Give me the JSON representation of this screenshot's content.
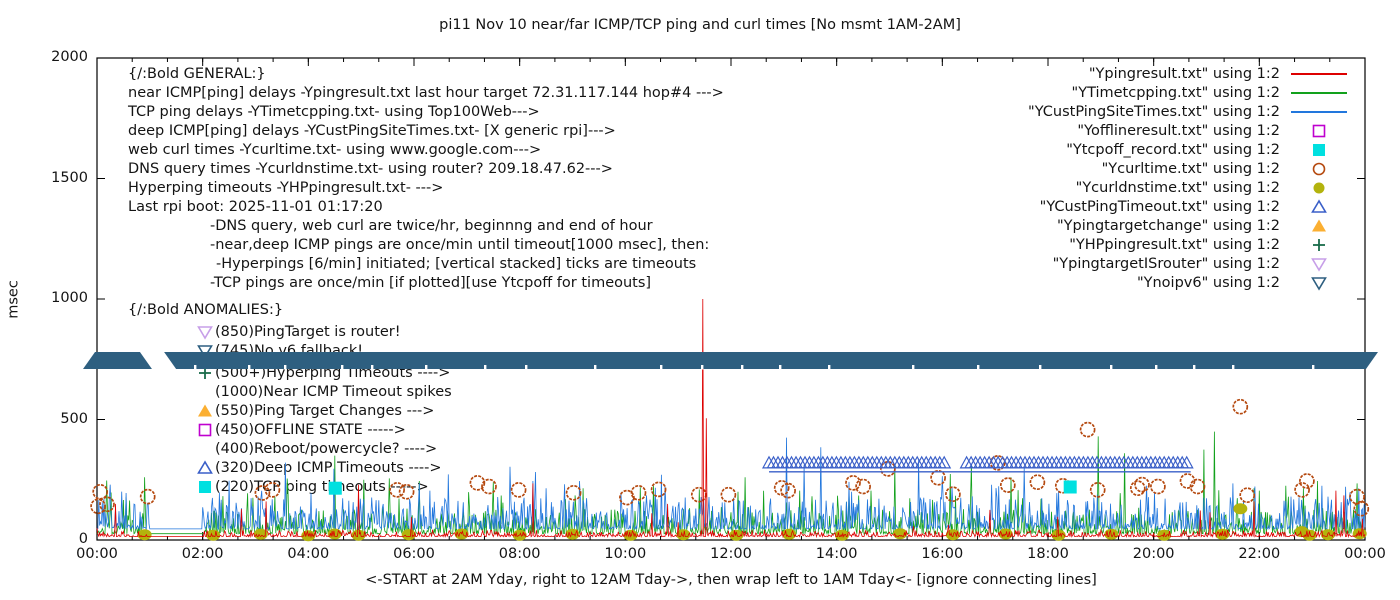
{
  "chart_data": {
    "type": "line",
    "title": "pi11 Nov 10  near/far ICMP/TCP ping and curl times [No msmt 1AM-2AM]",
    "xlabel": "<-START at 2AM Yday, right to 12AM Tday->, then wrap left to 1AM Tday<- [ignore connecting lines]",
    "ylabel": "msec",
    "ylim": [
      0,
      2000
    ],
    "xlim_hours": [
      0,
      24
    ],
    "yticks": [
      0,
      500,
      1000,
      1500,
      2000
    ],
    "xticks": [
      "00:00",
      "02:00",
      "04:00",
      "06:00",
      "08:00",
      "10:00",
      "12:00",
      "14:00",
      "16:00",
      "18:00",
      "20:00",
      "22:00",
      "00:00"
    ],
    "no_measurement_gap_hours": [
      1,
      2
    ],
    "series": [
      {
        "name": "Ypingresult.txt",
        "style": "noisy-line",
        "color": "#dd0000",
        "base": 14,
        "amp": 16,
        "spike_prob": 0.012,
        "spike_max": 110,
        "seed": 11,
        "spikes": [
          [
            0.35,
            150
          ],
          [
            3.2,
            160
          ],
          [
            4.95,
            230
          ],
          [
            8.25,
            235
          ],
          [
            10.8,
            150
          ],
          [
            11.47,
            1000
          ],
          [
            11.53,
            505
          ],
          [
            16.9,
            125
          ],
          [
            21.9,
            160
          ],
          [
            23.45,
            205
          ],
          [
            23.6,
            185
          ]
        ]
      },
      {
        "name": "YTimetcpping.txt",
        "style": "noisy-line",
        "color": "#12a11c",
        "base": 26,
        "amp": 60,
        "spike_prob": 0.055,
        "spike_max": 170,
        "seed": 7,
        "spikes": [
          [
            0.9,
            260
          ],
          [
            2.95,
            175
          ],
          [
            3.6,
            255
          ],
          [
            4.5,
            350
          ],
          [
            5.05,
            250
          ],
          [
            6.1,
            245
          ],
          [
            7.5,
            240
          ],
          [
            9.05,
            185
          ],
          [
            11.4,
            210
          ],
          [
            13.3,
            205
          ],
          [
            14.65,
            205
          ],
          [
            15.1,
            310
          ],
          [
            16.55,
            315
          ],
          [
            17.3,
            260
          ],
          [
            18.95,
            430
          ],
          [
            19.45,
            360
          ],
          [
            20.95,
            375
          ],
          [
            21.15,
            450
          ],
          [
            22.0,
            205
          ],
          [
            23.1,
            245
          ],
          [
            23.85,
            235
          ]
        ]
      },
      {
        "name": "YCustPingSiteTimes.txt",
        "style": "noisy-line",
        "color": "#2277dd",
        "base": 46,
        "amp": 78,
        "spike_prob": 0.045,
        "spike_max": 180,
        "seed": 3,
        "spikes": [
          [
            0.25,
            230
          ],
          [
            0.55,
            195
          ],
          [
            3.05,
            180
          ],
          [
            6.3,
            205
          ],
          [
            8.5,
            215
          ],
          [
            10.4,
            185
          ],
          [
            12.05,
            175
          ],
          [
            13.05,
            425
          ],
          [
            13.7,
            385
          ],
          [
            15.55,
            335
          ],
          [
            16.0,
            265
          ],
          [
            17.55,
            300
          ],
          [
            18.2,
            205
          ],
          [
            21.5,
            235
          ],
          [
            22.6,
            180
          ],
          [
            23.3,
            180
          ]
        ]
      },
      {
        "name": "Ycurltime.txt",
        "style": "circle-open",
        "color": "#b5490f",
        "points": [
          [
            0.02,
            140
          ],
          [
            0.06,
            200
          ],
          [
            0.19,
            148
          ],
          [
            0.96,
            180
          ],
          [
            3.13,
            195
          ],
          [
            3.32,
            208
          ],
          [
            5.68,
            208
          ],
          [
            5.86,
            200
          ],
          [
            7.2,
            237
          ],
          [
            7.42,
            222
          ],
          [
            7.98,
            208
          ],
          [
            9.02,
            196
          ],
          [
            10.03,
            176
          ],
          [
            10.25,
            196
          ],
          [
            10.63,
            210
          ],
          [
            11.39,
            188
          ],
          [
            11.95,
            188
          ],
          [
            12.96,
            216
          ],
          [
            13.08,
            205
          ],
          [
            14.31,
            237
          ],
          [
            14.5,
            222
          ],
          [
            14.97,
            295
          ],
          [
            15.92,
            258
          ],
          [
            16.2,
            190
          ],
          [
            17.05,
            320
          ],
          [
            17.24,
            228
          ],
          [
            17.8,
            240
          ],
          [
            18.28,
            225
          ],
          [
            18.75,
            458
          ],
          [
            18.94,
            208
          ],
          [
            19.7,
            215
          ],
          [
            19.78,
            230
          ],
          [
            20.08,
            222
          ],
          [
            20.64,
            245
          ],
          [
            20.83,
            222
          ],
          [
            21.64,
            553
          ],
          [
            21.77,
            186
          ],
          [
            22.81,
            208
          ],
          [
            22.9,
            245
          ],
          [
            23.85,
            180
          ],
          [
            23.93,
            130
          ]
        ]
      },
      {
        "name": "Ycurldnstime.txt",
        "style": "circle-filled",
        "color": "#b3b30d",
        "points": [
          [
            0.9,
            22
          ],
          [
            2.2,
            20
          ],
          [
            3.1,
            24
          ],
          [
            4.0,
            18
          ],
          [
            4.5,
            25
          ],
          [
            4.95,
            20
          ],
          [
            5.9,
            22
          ],
          [
            6.9,
            25
          ],
          [
            8.0,
            20
          ],
          [
            9.0,
            24
          ],
          [
            10.1,
            20
          ],
          [
            11.1,
            22
          ],
          [
            12.1,
            20
          ],
          [
            13.1,
            24
          ],
          [
            14.1,
            20
          ],
          [
            15.2,
            26
          ],
          [
            16.2,
            22
          ],
          [
            17.2,
            25
          ],
          [
            18.2,
            20
          ],
          [
            19.2,
            24
          ],
          [
            20.2,
            20
          ],
          [
            21.3,
            24
          ],
          [
            21.64,
            130
          ],
          [
            22.8,
            35
          ],
          [
            22.95,
            20
          ],
          [
            23.3,
            22
          ],
          [
            23.9,
            26
          ]
        ]
      },
      {
        "name": "YCustPingTimeout.txt",
        "style": "triangle-row",
        "color": "#3a5fc8",
        "row": {
          "start": 12.72,
          "end": 20.7,
          "step": 0.085,
          "value": 320,
          "line_value": 283,
          "gaps": [
            [
              16.12,
              16.38
            ]
          ]
        }
      },
      {
        "name": "Ytcpoff_record.txt",
        "style": "square-filled",
        "color": "#00e0e0",
        "points": [
          [
            4.51,
            215
          ],
          [
            18.42,
            220
          ]
        ]
      },
      {
        "name": "Ynoipv6",
        "style": "band",
        "color": "#2e5f80",
        "value": 745,
        "gap_hours": [
          1.04,
          1.27
        ]
      }
    ]
  },
  "legend": {
    "rows": [
      {
        "label": "\"Ypingresult.txt\" using 1:2",
        "swatch": "line",
        "color": "#dd0000"
      },
      {
        "label": "\"YTimetcpping.txt\" using 1:2",
        "swatch": "line",
        "color": "#12a11c"
      },
      {
        "label": "\"YCustPingSiteTimes.txt\" using 1:2",
        "swatch": "line",
        "color": "#2277dd"
      },
      {
        "label": "\"Yofflineresult.txt\" using 1:2",
        "swatch": "square-open",
        "color": "#bf00cf"
      },
      {
        "label": "\"Ytcpoff_record.txt\" using 1:2",
        "swatch": "square-filled",
        "color": "#00e0e0"
      },
      {
        "label": "\"Ycurltime.txt\" using 1:2",
        "swatch": "circle-open",
        "color": "#b5490f"
      },
      {
        "label": "\"Ycurldnstime.txt\" using 1:2",
        "swatch": "circle-filled",
        "color": "#b3b30d"
      },
      {
        "label": "\"YCustPingTimeout.txt\" using 1:2",
        "swatch": "triangle-up-open",
        "color": "#3a5fc8"
      },
      {
        "label": "\"Ypingtargetchange\" using 1:2",
        "swatch": "triangle-up-filled",
        "color": "#fbaf32"
      },
      {
        "label": "\"YHPpingresult.txt\" using 1:2",
        "swatch": "plus",
        "color": "#1a6b4a"
      },
      {
        "label": "\"YpingtargetISrouter\" using 1:2",
        "swatch": "triangle-down-open",
        "color": "#c79fe8"
      },
      {
        "label": "\"Ynoipv6\" using 1:2",
        "swatch": "triangle-down-open",
        "color": "#2e5f80"
      }
    ]
  },
  "general_notes": {
    "lines": [
      {
        "indent": 0,
        "text": "{/:Bold GENERAL:}"
      },
      {
        "indent": 0,
        "text": "near ICMP[ping] delays -Ypingresult.txt last hour target 72.31.117.144 hop#4 --->"
      },
      {
        "indent": 0,
        "text": "TCP ping delays -YTimetcpping.txt- using Top100Web--->"
      },
      {
        "indent": 0,
        "text": "deep ICMP[ping] delays -YCustPingSiteTimes.txt- [X generic rpi]--->"
      },
      {
        "indent": 0,
        "text": "web curl times -Ycurltime.txt- using www.google.com--->"
      },
      {
        "indent": 0,
        "text": "DNS query times -Ycurldnstime.txt- using router? 209.18.47.62--->"
      },
      {
        "indent": 0,
        "text": "Hyperping timeouts -YHPpingresult.txt- --->"
      },
      {
        "indent": 0,
        "text": "Last rpi boot: 2025-11-01 01:17:20"
      },
      {
        "indent": 1,
        "text": "-DNS query, web curl are twice/hr, beginnng and end of hour"
      },
      {
        "indent": 1,
        "text": "-near,deep ICMP pings are once/min until timeout[1000 msec], then:"
      },
      {
        "indent": 2,
        "text": "-Hyperpings [6/min] initiated; [vertical stacked] ticks are timeouts"
      },
      {
        "indent": 1,
        "text": "-TCP pings are once/min [if plotted][use Ytcpoff for timeouts]"
      }
    ]
  },
  "anomalies_notes": {
    "header": "{/:Bold ANOMALIES:}",
    "rows": [
      {
        "marker": "triangle-down-open",
        "color": "#c79fe8",
        "text": "(850)PingTarget is router!"
      },
      {
        "marker": "triangle-down-open",
        "color": "#2e5f80",
        "text": "(745)No v6 fallback!"
      },
      {
        "marker": "plus",
        "color": "#1a6b4a",
        "text": "(500+)Hyperping Timeouts ---->"
      },
      {
        "marker": "none",
        "color": "",
        "text": "(1000)Near ICMP Timeout spikes"
      },
      {
        "marker": "triangle-up-filled",
        "color": "#fbaf32",
        "text": "(550)Ping Target Changes --->"
      },
      {
        "marker": "square-open",
        "color": "#bf00cf",
        "text": "(450)OFFLINE STATE ----->"
      },
      {
        "marker": "none",
        "color": "",
        "text": "(400)Reboot/powercycle? ---->"
      },
      {
        "marker": "triangle-up-open",
        "color": "#3a5fc8",
        "text": "(320)Deep ICMP Timeouts ---->"
      },
      {
        "marker": "square-filled",
        "color": "#00e0e0",
        "text": "(220)TCP ping timeouts ----->"
      }
    ]
  }
}
